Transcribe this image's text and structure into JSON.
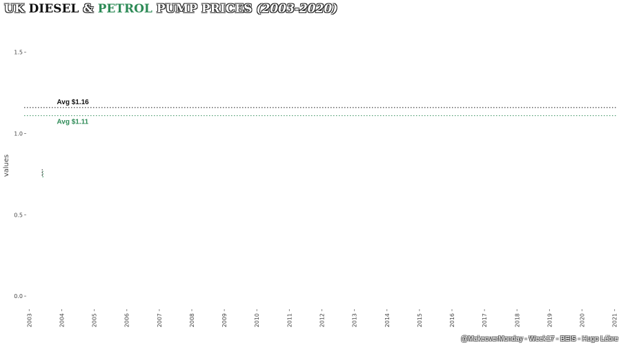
{
  "title": {
    "part1": "UK ",
    "part2": "DIESEL",
    "part3": " & ",
    "part4": "PETROL",
    "part5": " PUMP PRICES ",
    "part6": "(2003-2020)"
  },
  "colors": {
    "diesel": "#111111",
    "petrol": "#2e8b57",
    "axis_text": "#444444"
  },
  "caption": "@MakeoverMonday - Week17 - BEIS - Hugo Lébre",
  "chart_data": {
    "type": "line",
    "title": "UK DIESEL & PETROL PUMP PRICES (2003-2020)",
    "ylabel": "values",
    "xlabel": "",
    "x_ticks": [
      "2003",
      "2004",
      "2005",
      "2006",
      "2007",
      "2008",
      "2009",
      "2010",
      "2011",
      "2012",
      "2013",
      "2014",
      "2015",
      "2016",
      "2017",
      "2018",
      "2019",
      "2020",
      "2021"
    ],
    "y_ticks": [
      "0.0",
      "0.5",
      "1.0",
      "1.5"
    ],
    "xlim": [
      2002.95,
      2021.05
    ],
    "ylim": [
      -0.08,
      1.66
    ],
    "grid": false,
    "reference_lines": [
      {
        "name": "diesel",
        "value": 1.16,
        "label": "Avg $1.16"
      },
      {
        "name": "petrol",
        "value": 1.11,
        "label": "Avg $1.11"
      }
    ],
    "series": [
      {
        "name": "diesel",
        "x": [
          2003.4,
          2003.4
        ],
        "values": [
          0.74,
          0.78
        ]
      },
      {
        "name": "petrol",
        "x": [
          2003.42,
          2003.42
        ],
        "values": [
          0.73,
          0.77
        ]
      }
    ]
  }
}
